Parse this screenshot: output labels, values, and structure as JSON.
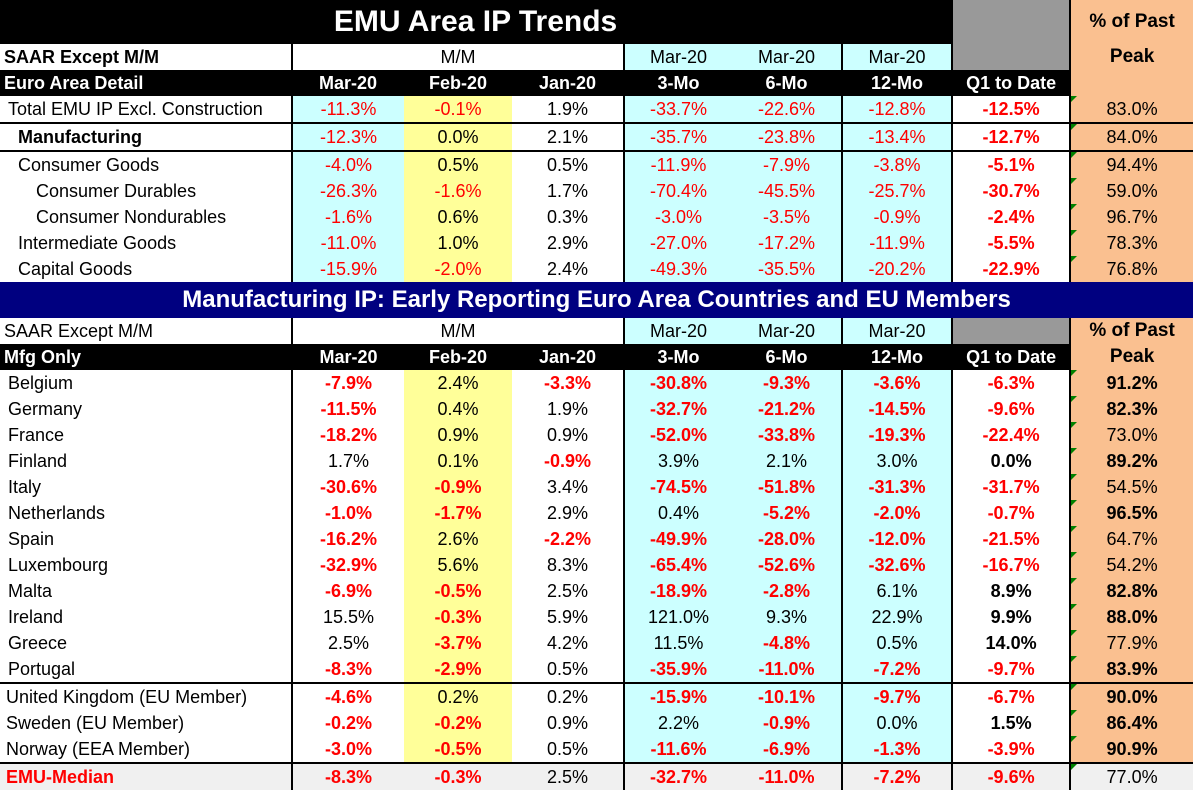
{
  "title": "EMU Area IP Trends",
  "band_title": "Manufacturing IP: Early Reporting Euro Area Countries and EU Members",
  "header": {
    "row1": {
      "label": "SAAR Except M/M",
      "mm": "M/M",
      "c4": "Mar-20",
      "c5": "Mar-20",
      "c6": "Mar-20",
      "peak1": "% of Past"
    },
    "row2_top": {
      "label": "Euro Area Detail",
      "c1": "Mar-20",
      "c2": "Feb-20",
      "c3": "Jan-20",
      "c4": "3-Mo",
      "c5": "6-Mo",
      "c6": "12-Mo",
      "c7": "Q1 to Date",
      "peak2": "Peak"
    },
    "row2_bottom": {
      "label": "Mfg Only",
      "c1": "Mar-20",
      "c2": "Feb-20",
      "c3": "Jan-20",
      "c4": "3-Mo",
      "c5": "6-Mo",
      "c6": "12-Mo",
      "c7": "Q1 to Date",
      "peak2": "Peak"
    }
  },
  "top_rows": [
    {
      "label": "Total EMU IP Excl. Construction",
      "v": [
        "-11.3%",
        "-0.1%",
        "1.9%",
        "-33.7%",
        "-22.6%",
        "-12.8%",
        "-12.5%",
        "83.0%"
      ]
    },
    {
      "label": "Manufacturing",
      "v": [
        "-12.3%",
        "0.0%",
        "2.1%",
        "-35.7%",
        "-23.8%",
        "-13.4%",
        "-12.7%",
        "84.0%"
      ]
    },
    {
      "label": "Consumer Goods",
      "v": [
        "-4.0%",
        "0.5%",
        "0.5%",
        "-11.9%",
        "-7.9%",
        "-3.8%",
        "-5.1%",
        "94.4%"
      ]
    },
    {
      "label": "Consumer Durables",
      "v": [
        "-26.3%",
        "-1.6%",
        "1.7%",
        "-70.4%",
        "-45.5%",
        "-25.7%",
        "-30.7%",
        "59.0%"
      ]
    },
    {
      "label": "Consumer Nondurables",
      "v": [
        "-1.6%",
        "0.6%",
        "0.3%",
        "-3.0%",
        "-3.5%",
        "-0.9%",
        "-2.4%",
        "96.7%"
      ]
    },
    {
      "label": "Intermediate Goods",
      "v": [
        "-11.0%",
        "1.0%",
        "2.9%",
        "-27.0%",
        "-17.2%",
        "-11.9%",
        "-5.5%",
        "78.3%"
      ]
    },
    {
      "label": "Capital Goods",
      "v": [
        "-15.9%",
        "-2.0%",
        "2.4%",
        "-49.3%",
        "-35.5%",
        "-20.2%",
        "-22.9%",
        "76.8%"
      ]
    }
  ],
  "country_rows": [
    {
      "label": "Belgium",
      "v": [
        "-7.9%",
        "2.4%",
        "-3.3%",
        "-30.8%",
        "-9.3%",
        "-3.6%",
        "-6.3%",
        "91.2%"
      ]
    },
    {
      "label": "Germany",
      "v": [
        "-11.5%",
        "0.4%",
        "1.9%",
        "-32.7%",
        "-21.2%",
        "-14.5%",
        "-9.6%",
        "82.3%"
      ]
    },
    {
      "label": "France",
      "v": [
        "-18.2%",
        "0.9%",
        "0.9%",
        "-52.0%",
        "-33.8%",
        "-19.3%",
        "-22.4%",
        "73.0%"
      ]
    },
    {
      "label": "Finland",
      "v": [
        "1.7%",
        "0.1%",
        "-0.9%",
        "3.9%",
        "2.1%",
        "3.0%",
        "0.0%",
        "89.2%"
      ]
    },
    {
      "label": "Italy",
      "v": [
        "-30.6%",
        "-0.9%",
        "3.4%",
        "-74.5%",
        "-51.8%",
        "-31.3%",
        "-31.7%",
        "54.5%"
      ]
    },
    {
      "label": "Netherlands",
      "v": [
        "-1.0%",
        "-1.7%",
        "2.9%",
        "0.4%",
        "-5.2%",
        "-2.0%",
        "-0.7%",
        "96.5%"
      ]
    },
    {
      "label": "Spain",
      "v": [
        "-16.2%",
        "2.6%",
        "-2.2%",
        "-49.9%",
        "-28.0%",
        "-12.0%",
        "-21.5%",
        "64.7%"
      ]
    },
    {
      "label": "Luxembourg",
      "v": [
        "-32.9%",
        "5.6%",
        "8.3%",
        "-65.4%",
        "-52.6%",
        "-32.6%",
        "-16.7%",
        "54.2%"
      ]
    },
    {
      "label": "Malta",
      "v": [
        "-6.9%",
        "-0.5%",
        "2.5%",
        "-18.9%",
        "-2.8%",
        "6.1%",
        "8.9%",
        "82.8%"
      ]
    },
    {
      "label": "Ireland",
      "v": [
        "15.5%",
        "-0.3%",
        "5.9%",
        "121.0%",
        "9.3%",
        "22.9%",
        "9.9%",
        "88.0%"
      ]
    },
    {
      "label": "Greece",
      "v": [
        "2.5%",
        "-3.7%",
        "4.2%",
        "11.5%",
        "-4.8%",
        "0.5%",
        "14.0%",
        "77.9%"
      ]
    },
    {
      "label": "Portugal",
      "v": [
        "-8.3%",
        "-2.9%",
        "0.5%",
        "-35.9%",
        "-11.0%",
        "-7.2%",
        "-9.7%",
        "83.9%"
      ]
    }
  ],
  "eu_rows": [
    {
      "label": "United Kingdom (EU Member)",
      "v": [
        "-4.6%",
        "0.2%",
        "0.2%",
        "-15.9%",
        "-10.1%",
        "-9.7%",
        "-6.7%",
        "90.0%"
      ]
    },
    {
      "label": "Sweden (EU Member)",
      "v": [
        "-0.2%",
        "-0.2%",
        "0.9%",
        "2.2%",
        "-0.9%",
        "0.0%",
        "1.5%",
        "86.4%"
      ]
    },
    {
      "label": "Norway (EEA Member)",
      "v": [
        "-3.0%",
        "-0.5%",
        "0.5%",
        "-11.6%",
        "-6.9%",
        "-1.3%",
        "-3.9%",
        "90.9%"
      ]
    }
  ],
  "median_row": {
    "label": "EMU-Median",
    "v": [
      "-8.3%",
      "-0.3%",
      "2.5%",
      "-32.7%",
      "-11.0%",
      "-7.2%",
      "-9.6%",
      "77.0%"
    ]
  },
  "colors": {
    "negative": "#ff0000",
    "cyan": "#ccffff",
    "yellow": "#ffff99",
    "peak": "#fac090",
    "band": "#000080"
  }
}
